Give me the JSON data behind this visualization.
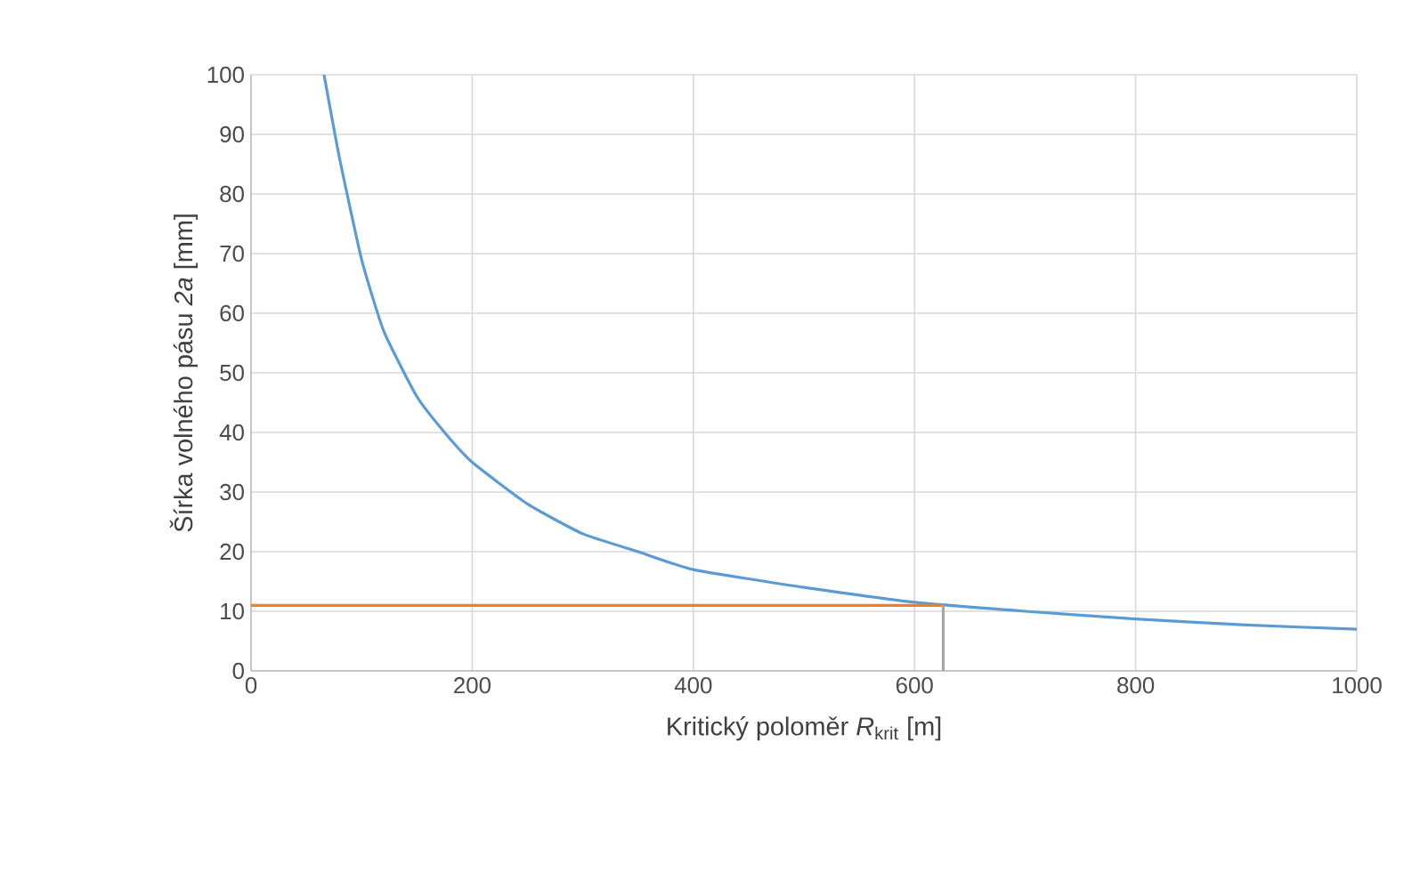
{
  "chart_data": {
    "type": "line",
    "xlabel": "Kritický poloměr *R*$_{krit}$ [m]",
    "ylabel": "Šírka volného pásu *2a* [mm]",
    "xlim": [
      0,
      1000
    ],
    "ylim": [
      0,
      100
    ],
    "xticks": [
      0,
      200,
      400,
      600,
      800,
      1000
    ],
    "yticks": [
      0,
      10,
      20,
      30,
      40,
      50,
      60,
      70,
      80,
      90,
      100
    ],
    "grid": true,
    "marker": "none",
    "line_style": "solid",
    "series": [
      {
        "color": "#5b9bd5",
        "x": [
          66,
          80,
          100,
          120,
          150,
          175,
          200,
          250,
          300,
          350,
          400,
          500,
          600,
          700,
          800,
          900,
          1000
        ],
        "values": [
          100,
          86,
          69,
          57,
          46,
          40,
          35,
          28,
          23,
          20,
          17,
          14,
          11.5,
          10,
          8.7,
          7.7,
          7
        ]
      },
      {
        "color": "#ed7d31",
        "x": [
          0,
          626
        ],
        "values": [
          11,
          11
        ]
      },
      {
        "color": "#a5a5a5",
        "x": [
          626,
          626
        ],
        "values": [
          0,
          11
        ]
      }
    ]
  }
}
